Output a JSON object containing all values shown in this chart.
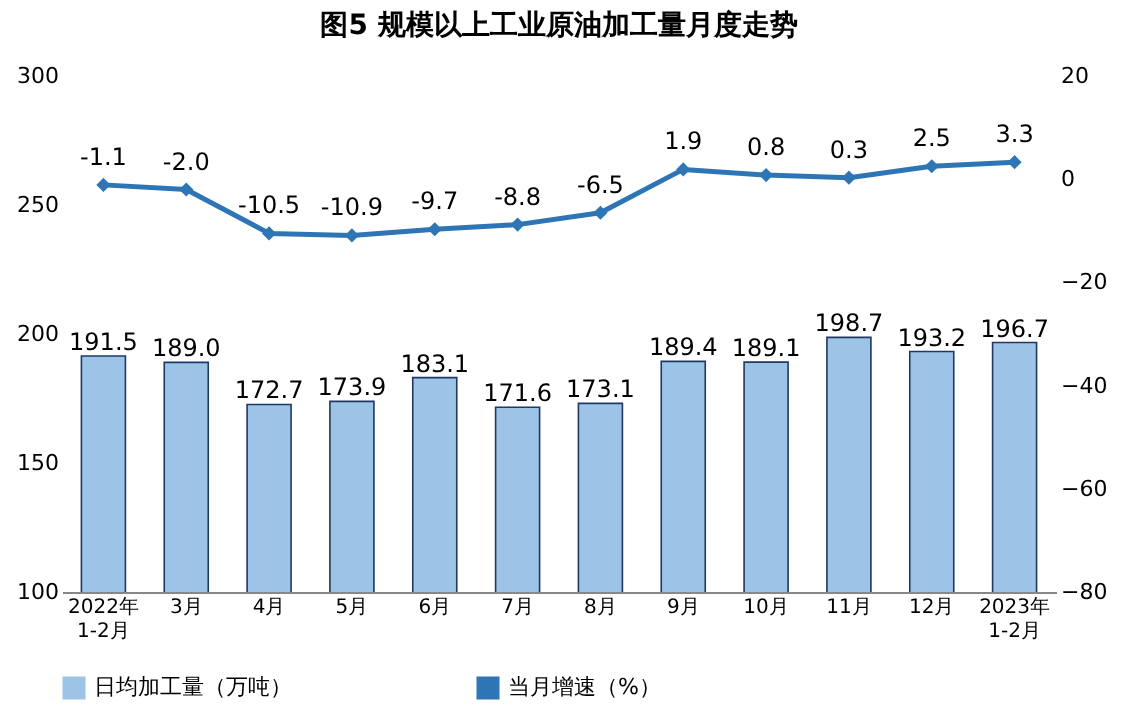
{
  "chart_data": {
    "type": "bar",
    "title": "图5 规模以上工业原油加工量月度走势",
    "categories": [
      "2022年\n1-2月",
      "3月",
      "4月",
      "5月",
      "6月",
      "7月",
      "8月",
      "9月",
      "10月",
      "11月",
      "12月",
      "2023年\n1-2月"
    ],
    "series": [
      {
        "name": "日均加工量（万吨）",
        "color": "#9dc3e6",
        "values": [
          191.5,
          189.0,
          172.7,
          173.9,
          183.1,
          171.6,
          173.1,
          189.4,
          189.1,
          198.7,
          193.2,
          196.7
        ],
        "value_labels": [
          "191.5",
          "189.0",
          "172.7",
          "173.9",
          "183.1",
          "171.6",
          "173.1",
          "189.4",
          "189.1",
          "198.7",
          "193.2",
          "196.7"
        ]
      },
      {
        "name": "当月增速（%）",
        "type": "line",
        "axis": "y2",
        "color": "#2e75b6",
        "marker": "diamond",
        "values": [
          -1.1,
          -2.0,
          -10.5,
          -10.9,
          -9.7,
          -8.8,
          -6.5,
          1.9,
          0.8,
          0.3,
          2.5,
          3.3
        ],
        "value_labels": [
          "-1.1",
          "-2.0",
          "-10.5",
          "-10.9",
          "-9.7",
          "-8.8",
          "-6.5",
          "1.9",
          "0.8",
          "0.3",
          "2.5",
          "3.3"
        ]
      }
    ],
    "ylim": [
      100,
      300
    ],
    "yticks": [
      100,
      150,
      200,
      250,
      300
    ],
    "y2lim": [
      -80,
      20
    ],
    "y2ticks": [
      -80,
      -60,
      -40,
      -20,
      0,
      20
    ],
    "legend": "bottom",
    "grid": false
  }
}
